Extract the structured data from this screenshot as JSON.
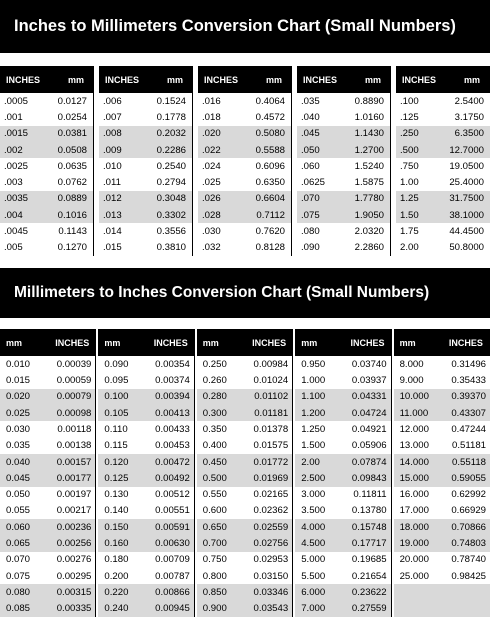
{
  "title1": "Inches to Millimeters Conversion Chart  (Small Numbers)",
  "title2": "Millimeters to Inches Conversion Chart (Small Numbers)",
  "header_inches": "INCHES",
  "header_mm": "mm",
  "table1": {
    "columns": [
      {
        "rows": [
          [
            ".0005",
            "0.0127"
          ],
          [
            ".001",
            "0.0254"
          ],
          [
            ".0015",
            "0.0381"
          ],
          [
            ".002",
            "0.0508"
          ],
          [
            ".0025",
            "0.0635"
          ],
          [
            ".003",
            "0.0762"
          ],
          [
            ".0035",
            "0.0889"
          ],
          [
            ".004",
            "0.1016"
          ],
          [
            ".0045",
            "0.1143"
          ],
          [
            ".005",
            "0.1270"
          ]
        ]
      },
      {
        "rows": [
          [
            ".006",
            "0.1524"
          ],
          [
            ".007",
            "0.1778"
          ],
          [
            ".008",
            "0.2032"
          ],
          [
            ".009",
            "0.2286"
          ],
          [
            ".010",
            "0.2540"
          ],
          [
            ".011",
            "0.2794"
          ],
          [
            ".012",
            "0.3048"
          ],
          [
            ".013",
            "0.3302"
          ],
          [
            ".014",
            "0.3556"
          ],
          [
            ".015",
            "0.3810"
          ]
        ]
      },
      {
        "rows": [
          [
            ".016",
            "0.4064"
          ],
          [
            ".018",
            "0.4572"
          ],
          [
            ".020",
            "0.5080"
          ],
          [
            ".022",
            "0.5588"
          ],
          [
            ".024",
            "0.6096"
          ],
          [
            ".025",
            "0.6350"
          ],
          [
            ".026",
            "0.6604"
          ],
          [
            ".028",
            "0.7112"
          ],
          [
            ".030",
            "0.7620"
          ],
          [
            ".032",
            "0.8128"
          ]
        ]
      },
      {
        "rows": [
          [
            ".035",
            "0.8890"
          ],
          [
            ".040",
            "1.0160"
          ],
          [
            ".045",
            "1.1430"
          ],
          [
            ".050",
            "1.2700"
          ],
          [
            ".060",
            "1.5240"
          ],
          [
            ".0625",
            "1.5875"
          ],
          [
            ".070",
            "1.7780"
          ],
          [
            ".075",
            "1.9050"
          ],
          [
            ".080",
            "2.0320"
          ],
          [
            ".090",
            "2.2860"
          ]
        ]
      },
      {
        "rows": [
          [
            ".100",
            "2.5400"
          ],
          [
            ".125",
            "3.1750"
          ],
          [
            ".250",
            "6.3500"
          ],
          [
            ".500",
            "12.7000"
          ],
          [
            ".750",
            "19.0500"
          ],
          [
            "1.00",
            "25.4000"
          ],
          [
            "1.25",
            "31.7500"
          ],
          [
            "1.50",
            "38.1000"
          ],
          [
            "1.75",
            "44.4500"
          ],
          [
            "2.00",
            "50.8000"
          ]
        ]
      }
    ],
    "shaded_rows": [
      2,
      3,
      6,
      7
    ]
  },
  "table2": {
    "columns": [
      {
        "rows": [
          [
            "0.010",
            "0.00039"
          ],
          [
            "0.015",
            "0.00059"
          ],
          [
            "0.020",
            "0.00079"
          ],
          [
            "0.025",
            "0.00098"
          ],
          [
            "0.030",
            "0.00118"
          ],
          [
            "0.035",
            "0.00138"
          ],
          [
            "0.040",
            "0.00157"
          ],
          [
            "0.045",
            "0.00177"
          ],
          [
            "0.050",
            "0.00197"
          ],
          [
            "0.055",
            "0.00217"
          ],
          [
            "0.060",
            "0.00236"
          ],
          [
            "0.065",
            "0.00256"
          ],
          [
            "0.070",
            "0.00276"
          ],
          [
            "0.075",
            "0.00295"
          ],
          [
            "0.080",
            "0.00315"
          ],
          [
            "0.085",
            "0.00335"
          ]
        ]
      },
      {
        "rows": [
          [
            "0.090",
            "0.00354"
          ],
          [
            "0.095",
            "0.00374"
          ],
          [
            "0.100",
            "0.00394"
          ],
          [
            "0.105",
            "0.00413"
          ],
          [
            "0.110",
            "0.00433"
          ],
          [
            "0.115",
            "0.00453"
          ],
          [
            "0.120",
            "0.00472"
          ],
          [
            "0.125",
            "0.00492"
          ],
          [
            "0.130",
            "0.00512"
          ],
          [
            "0.140",
            "0.00551"
          ],
          [
            "0.150",
            "0.00591"
          ],
          [
            "0.160",
            "0.00630"
          ],
          [
            "0.180",
            "0.00709"
          ],
          [
            "0.200",
            "0.00787"
          ],
          [
            "0.220",
            "0.00866"
          ],
          [
            "0.240",
            "0.00945"
          ]
        ]
      },
      {
        "rows": [
          [
            "0.250",
            "0.00984"
          ],
          [
            "0.260",
            "0.01024"
          ],
          [
            "0.280",
            "0.01102"
          ],
          [
            "0.300",
            "0.01181"
          ],
          [
            "0.350",
            "0.01378"
          ],
          [
            "0.400",
            "0.01575"
          ],
          [
            "0.450",
            "0.01772"
          ],
          [
            "0.500",
            "0.01969"
          ],
          [
            "0.550",
            "0.02165"
          ],
          [
            "0.600",
            "0.02362"
          ],
          [
            "0.650",
            "0.02559"
          ],
          [
            "0.700",
            "0.02756"
          ],
          [
            "0.750",
            "0.02953"
          ],
          [
            "0.800",
            "0.03150"
          ],
          [
            "0.850",
            "0.03346"
          ],
          [
            "0.900",
            "0.03543"
          ]
        ]
      },
      {
        "rows": [
          [
            "0.950",
            "0.03740"
          ],
          [
            "1.000",
            "0.03937"
          ],
          [
            "1.100",
            "0.04331"
          ],
          [
            "1.200",
            "0.04724"
          ],
          [
            "1.250",
            "0.04921"
          ],
          [
            "1.500",
            "0.05906"
          ],
          [
            "2.00",
            "0.07874"
          ],
          [
            "2.500",
            "0.09843"
          ],
          [
            "3.000",
            "0.11811"
          ],
          [
            "3.500",
            "0.13780"
          ],
          [
            "4.000",
            "0.15748"
          ],
          [
            "4.500",
            "0.17717"
          ],
          [
            "5.000",
            "0.19685"
          ],
          [
            "5.500",
            "0.21654"
          ],
          [
            "6.000",
            "0.23622"
          ],
          [
            "7.000",
            "0.27559"
          ]
        ]
      },
      {
        "rows": [
          [
            "8.000",
            "0.31496"
          ],
          [
            "9.000",
            "0.35433"
          ],
          [
            "10.000",
            "0.39370"
          ],
          [
            "11.000",
            "0.43307"
          ],
          [
            "12.000",
            "0.47244"
          ],
          [
            "13.000",
            "0.51181"
          ],
          [
            "14.000",
            "0.55118"
          ],
          [
            "15.000",
            "0.59055"
          ],
          [
            "16.000",
            "0.62992"
          ],
          [
            "17.000",
            "0.66929"
          ],
          [
            "18.000",
            "0.70866"
          ],
          [
            "19.000",
            "0.74803"
          ],
          [
            "20.000",
            "0.78740"
          ],
          [
            "25.000",
            "0.98425"
          ],
          [
            "",
            ""
          ],
          [
            "",
            ""
          ]
        ]
      }
    ],
    "shaded_rows": [
      2,
      3,
      6,
      7,
      10,
      11,
      14,
      15
    ]
  }
}
